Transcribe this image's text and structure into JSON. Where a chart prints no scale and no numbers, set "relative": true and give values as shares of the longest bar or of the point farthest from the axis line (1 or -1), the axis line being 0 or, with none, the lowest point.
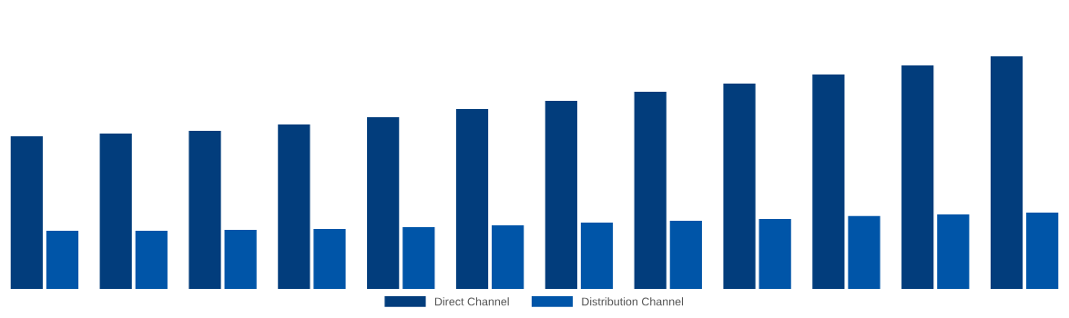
{
  "chart_data": {
    "type": "bar",
    "relative": true,
    "legend": "bottom",
    "grid": false,
    "categories": [
      null,
      null,
      null,
      null,
      null,
      null,
      null,
      null,
      null,
      null,
      null,
      null
    ],
    "series": [
      {
        "name": "Direct Channel",
        "color": "#023d7c",
        "values": [
          0.656,
          0.668,
          0.68,
          0.707,
          0.738,
          0.773,
          0.809,
          0.848,
          0.883,
          0.922,
          0.961,
          1
        ]
      },
      {
        "name": "Distribution Channel",
        "color": "#0055a8",
        "values": [
          0.25,
          0.25,
          0.254,
          0.258,
          0.266,
          0.273,
          0.285,
          0.293,
          0.301,
          0.313,
          0.32,
          0.328
        ]
      }
    ]
  }
}
